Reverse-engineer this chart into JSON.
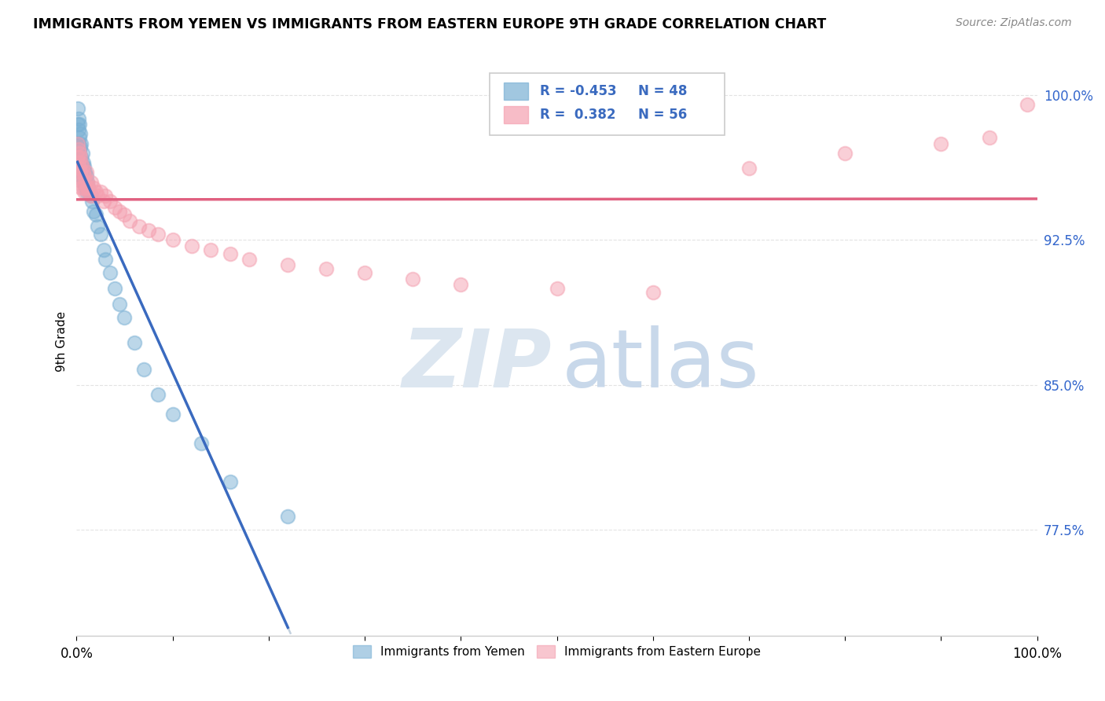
{
  "title": "IMMIGRANTS FROM YEMEN VS IMMIGRANTS FROM EASTERN EUROPE 9TH GRADE CORRELATION CHART",
  "source": "Source: ZipAtlas.com",
  "ylabel": "9th Grade",
  "xlim": [
    0.0,
    1.0
  ],
  "ylim": [
    0.72,
    1.025
  ],
  "yticks": [
    0.775,
    0.85,
    0.925,
    1.0
  ],
  "ytick_labels": [
    "77.5%",
    "85.0%",
    "92.5%",
    "100.0%"
  ],
  "xticks": [
    0.0,
    0.1,
    0.2,
    0.3,
    0.4,
    0.5,
    0.6,
    0.7,
    0.8,
    0.9,
    1.0
  ],
  "blue_R": -0.453,
  "blue_N": 48,
  "pink_R": 0.382,
  "pink_N": 56,
  "blue_color": "#7ab0d4",
  "pink_color": "#f4a0b0",
  "blue_line_color": "#3a6abf",
  "pink_line_color": "#e06080",
  "dashed_line_color": "#b8c8d8",
  "legend_label_blue": "Immigrants from Yemen",
  "legend_label_pink": "Immigrants from Eastern Europe",
  "blue_points_x": [
    0.001,
    0.001,
    0.002,
    0.002,
    0.002,
    0.003,
    0.003,
    0.003,
    0.003,
    0.004,
    0.004,
    0.004,
    0.005,
    0.005,
    0.005,
    0.005,
    0.006,
    0.006,
    0.007,
    0.007,
    0.008,
    0.008,
    0.009,
    0.009,
    0.01,
    0.01,
    0.011,
    0.012,
    0.013,
    0.015,
    0.016,
    0.018,
    0.02,
    0.022,
    0.025,
    0.028,
    0.03,
    0.035,
    0.04,
    0.045,
    0.05,
    0.06,
    0.07,
    0.085,
    0.1,
    0.13,
    0.16,
    0.22
  ],
  "blue_points_y": [
    0.993,
    0.985,
    0.988,
    0.982,
    0.975,
    0.985,
    0.978,
    0.972,
    0.965,
    0.98,
    0.973,
    0.966,
    0.975,
    0.968,
    0.962,
    0.958,
    0.97,
    0.963,
    0.965,
    0.958,
    0.963,
    0.955,
    0.96,
    0.953,
    0.958,
    0.95,
    0.955,
    0.952,
    0.95,
    0.948,
    0.945,
    0.94,
    0.938,
    0.932,
    0.928,
    0.92,
    0.915,
    0.908,
    0.9,
    0.892,
    0.885,
    0.872,
    0.858,
    0.845,
    0.835,
    0.82,
    0.8,
    0.782
  ],
  "pink_points_x": [
    0.001,
    0.001,
    0.002,
    0.002,
    0.003,
    0.003,
    0.004,
    0.004,
    0.005,
    0.005,
    0.005,
    0.006,
    0.006,
    0.007,
    0.007,
    0.008,
    0.008,
    0.009,
    0.01,
    0.01,
    0.011,
    0.012,
    0.013,
    0.015,
    0.015,
    0.018,
    0.02,
    0.022,
    0.025,
    0.028,
    0.03,
    0.035,
    0.04,
    0.045,
    0.05,
    0.055,
    0.065,
    0.075,
    0.085,
    0.1,
    0.12,
    0.14,
    0.16,
    0.18,
    0.22,
    0.26,
    0.3,
    0.35,
    0.4,
    0.5,
    0.6,
    0.7,
    0.8,
    0.9,
    0.95,
    0.99
  ],
  "pink_points_y": [
    0.975,
    0.968,
    0.972,
    0.965,
    0.97,
    0.962,
    0.968,
    0.96,
    0.965,
    0.958,
    0.952,
    0.963,
    0.955,
    0.96,
    0.952,
    0.958,
    0.95,
    0.955,
    0.96,
    0.952,
    0.955,
    0.952,
    0.95,
    0.955,
    0.948,
    0.952,
    0.95,
    0.948,
    0.95,
    0.945,
    0.948,
    0.945,
    0.942,
    0.94,
    0.938,
    0.935,
    0.932,
    0.93,
    0.928,
    0.925,
    0.922,
    0.92,
    0.918,
    0.915,
    0.912,
    0.91,
    0.908,
    0.905,
    0.902,
    0.9,
    0.898,
    0.962,
    0.97,
    0.975,
    0.978,
    0.995
  ],
  "watermark_zip_color": "#dce6f0",
  "watermark_atlas_color": "#c8d8ea"
}
